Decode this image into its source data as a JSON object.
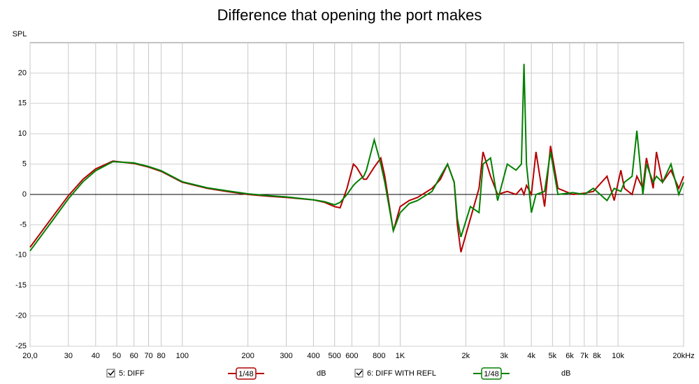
{
  "chart_data": {
    "type": "line",
    "title": "Difference that opening the port makes",
    "y_label": "SPL",
    "log_x": true,
    "grid": true,
    "x": [
      20,
      25,
      30,
      35,
      40,
      48,
      60,
      70,
      80,
      100,
      130,
      160,
      200,
      250,
      300,
      400,
      450,
      500,
      530,
      570,
      610,
      630,
      680,
      700,
      760,
      815,
      850,
      930,
      1000,
      1100,
      1200,
      1400,
      1530,
      1650,
      1770,
      1830,
      1900,
      2100,
      2300,
      2400,
      2600,
      2800,
      3100,
      3400,
      3600,
      3700,
      3800,
      4000,
      4200,
      4600,
      4900,
      5300,
      6200,
      7000,
      7700,
      8900,
      9600,
      10300,
      10700,
      11600,
      12200,
      13000,
      13500,
      14500,
      15000,
      16000,
      17500,
      19000,
      20000
    ],
    "series": [
      {
        "name": "5: DIFF",
        "color": "#b40000",
        "smoothing": "1/48",
        "unit": "dB",
        "values": [
          -8.7,
          -4.0,
          -0.2,
          2.5,
          4.2,
          5.5,
          5.1,
          4.5,
          3.8,
          2.0,
          1.0,
          0.5,
          0.0,
          -0.3,
          -0.5,
          -0.9,
          -1.3,
          -2.0,
          -2.2,
          1.0,
          5.0,
          4.5,
          2.5,
          2.5,
          4.5,
          6.0,
          3.0,
          -6.0,
          -2.0,
          -1.0,
          -0.5,
          1.0,
          2.5,
          5.0,
          2.0,
          -5.0,
          -9.5,
          -4.0,
          1.0,
          7.0,
          3.0,
          0.0,
          0.5,
          0.0,
          1.0,
          0.0,
          1.5,
          0.0,
          7.0,
          -2.0,
          8.0,
          1.0,
          0.0,
          0.2,
          0.5,
          3.0,
          -1.0,
          4.0,
          1.0,
          0.0,
          3.0,
          1.0,
          6.0,
          1.0,
          7.0,
          2.0,
          4.0,
          1.0,
          3.0
        ]
      },
      {
        "name": "6: DIFF WITH REFL",
        "color": "#008000",
        "smoothing": "1/48",
        "unit": "dB",
        "values": [
          -9.3,
          -4.6,
          -0.7,
          2.1,
          3.9,
          5.4,
          5.2,
          4.6,
          3.9,
          2.1,
          1.1,
          0.6,
          0.1,
          -0.2,
          -0.4,
          -0.9,
          -1.2,
          -1.7,
          -1.3,
          0.0,
          1.5,
          2.0,
          3.0,
          4.0,
          9.0,
          5.0,
          2.0,
          -6.0,
          -3.0,
          -1.5,
          -1.0,
          0.5,
          3.0,
          5.0,
          2.0,
          -4.0,
          -7.0,
          -2.0,
          -3.0,
          5.0,
          6.0,
          -1.0,
          5.0,
          4.0,
          5.0,
          21.5,
          5.0,
          -3.0,
          0.0,
          0.5,
          7.0,
          0.0,
          0.3,
          0.0,
          1.0,
          -1.0,
          1.0,
          0.5,
          2.0,
          3.0,
          10.5,
          0.0,
          5.0,
          2.0,
          3.0,
          2.0,
          5.0,
          0.0,
          2.0
        ]
      }
    ],
    "xlim": [
      20,
      20000
    ],
    "xticks": [
      {
        "value": 20,
        "label": "20,0"
      },
      30,
      40,
      50,
      60,
      70,
      80,
      100,
      200,
      300,
      400,
      500,
      600,
      800,
      {
        "value": 1000,
        "label": "1K"
      },
      {
        "value": 2000,
        "label": "2k"
      },
      {
        "value": 3000,
        "label": "3k"
      },
      {
        "value": 4000,
        "label": "4k"
      },
      {
        "value": 5000,
        "label": "5k"
      },
      {
        "value": 6000,
        "label": "6k"
      },
      {
        "value": 7000,
        "label": "7k"
      },
      {
        "value": 8000,
        "label": "8k"
      },
      {
        "value": 10000,
        "label": "10k"
      },
      {
        "value": 20000,
        "label": "20kHz"
      }
    ],
    "ylim": [
      -25,
      25
    ],
    "yticks": [
      -25,
      -20,
      -15,
      -10,
      -5,
      0,
      5,
      10,
      15,
      20
    ]
  }
}
